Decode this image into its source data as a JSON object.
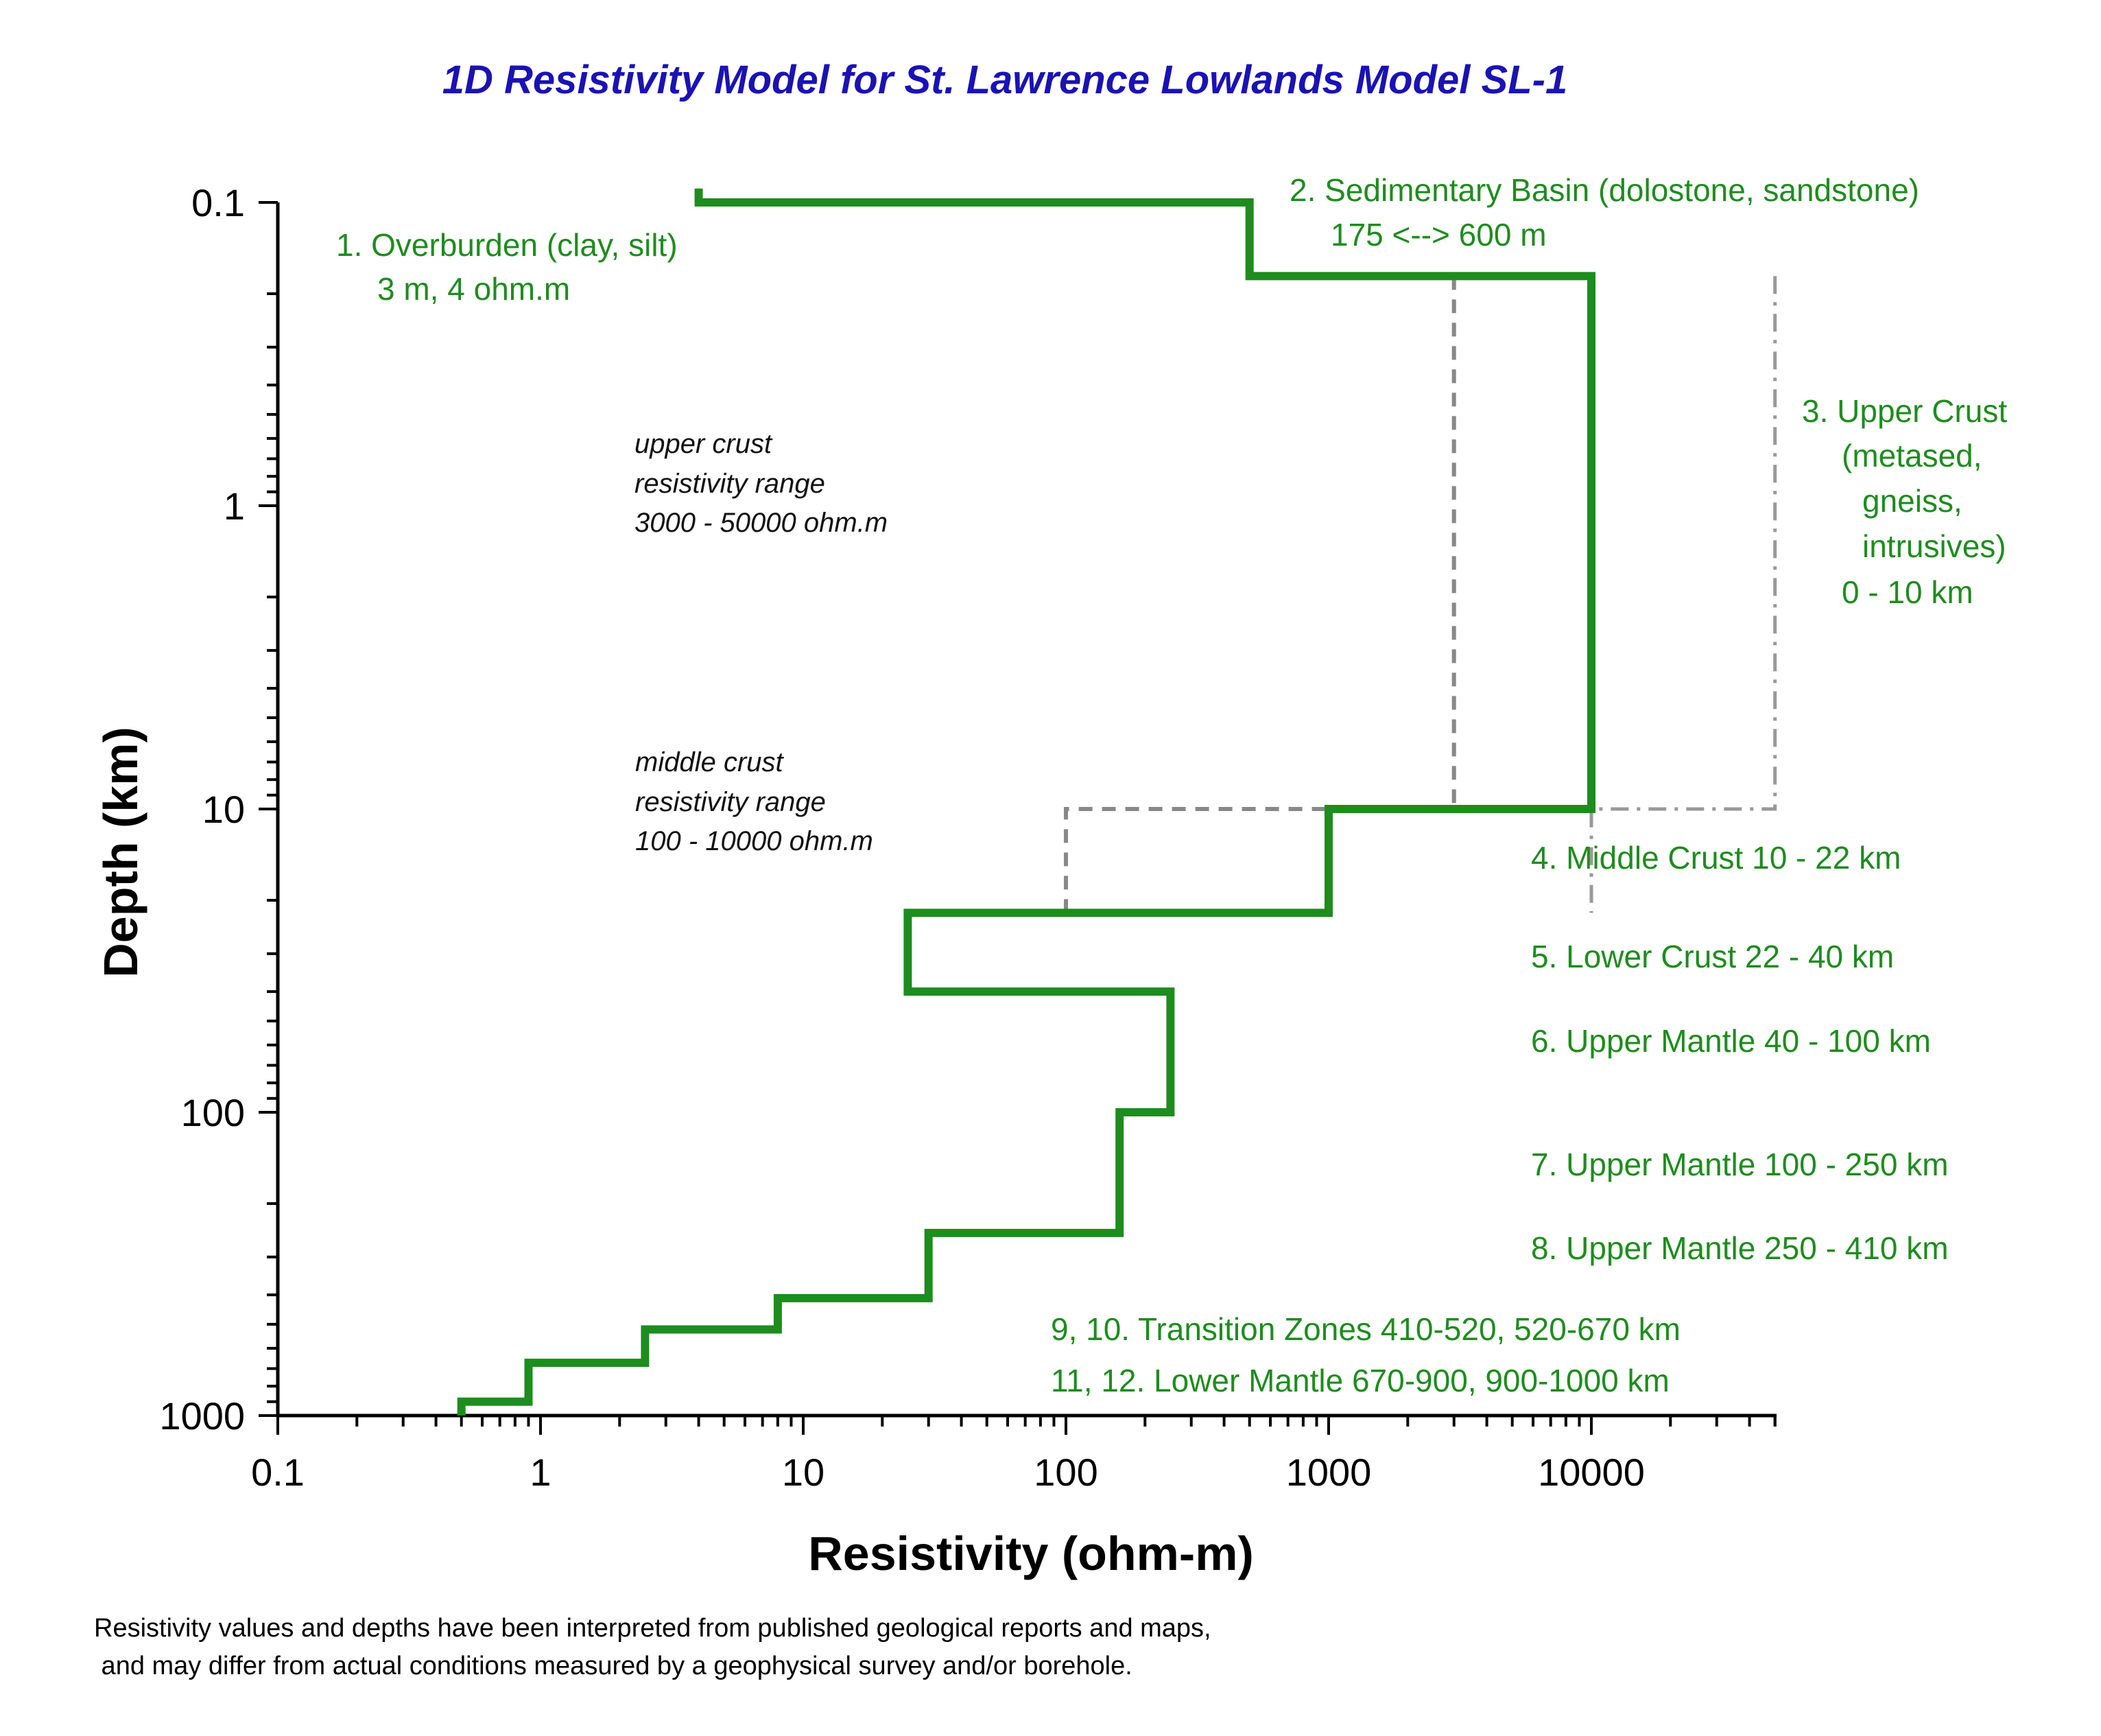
{
  "chart_data": {
    "type": "line",
    "title": "1D Resistivity Model for St. Lawrence Lowlands  Model SL-1",
    "xlabel": "Resistivity (ohm-m)",
    "ylabel": "Depth (km)",
    "x_scale": "log",
    "y_scale": "log",
    "y_inverted": true,
    "xlim": [
      0.1,
      50000
    ],
    "ylim": [
      0.1,
      1000
    ],
    "x_ticks": [
      "0.1",
      "1",
      "10",
      "100",
      "1000",
      "10000"
    ],
    "y_ticks": [
      "0.1",
      "1",
      "10",
      "100",
      "1000"
    ],
    "series": [
      {
        "role": "model",
        "color": "#1e8c1e",
        "style": "solid",
        "x": [
          4,
          4,
          500,
          500,
          10000,
          10000,
          1000,
          1000,
          25,
          25,
          250,
          250,
          160,
          160,
          30,
          30,
          8,
          8,
          2.5,
          2.5,
          0.9,
          0.9,
          0.5,
          0.5
        ],
        "y": [
          0.09,
          0.1,
          0.1,
          0.175,
          0.175,
          10,
          10,
          22,
          22,
          40,
          40,
          100,
          100,
          250,
          250,
          410,
          410,
          520,
          520,
          670,
          670,
          900,
          900,
          1000
        ]
      },
      {
        "role": "upper-crust-min",
        "color": "#888888",
        "style": "dashed",
        "x": [
          3000,
          3000
        ],
        "y": [
          0.175,
          10
        ]
      },
      {
        "role": "upper-crust-max",
        "color": "#999999",
        "style": "dash-dot",
        "x": [
          50000,
          50000,
          10000,
          10000
        ],
        "y": [
          0.175,
          10,
          10,
          22
        ]
      },
      {
        "role": "middle-crust-range",
        "color": "#888888",
        "style": "dashed",
        "x": [
          100,
          100,
          10000
        ],
        "y": [
          22,
          10,
          10
        ]
      }
    ],
    "annotations": {
      "overburden": [
        "1. Overburden (clay, silt)",
        "3 m, 4 ohm.m"
      ],
      "sedimentary": [
        "2. Sedimentary Basin (dolostone, sandstone)",
        "175 <--> 600 m"
      ],
      "upper_crust": [
        "3. Upper Crust",
        "(metased,",
        "gneiss,",
        "intrusives)",
        "0 - 10 km"
      ],
      "upper_range": [
        "upper crust",
        "resistivity range",
        "3000 - 50000 ohm.m"
      ],
      "middle_range": [
        "middle crust",
        "resistivity range",
        "100 - 10000 ohm.m"
      ],
      "layer4": "4. Middle Crust 10 - 22 km",
      "layer5": "5. Lower Crust 22 - 40 km",
      "layer6": "6. Upper Mantle 40 - 100 km",
      "layer7": "7. Upper Mantle 100 - 250 km",
      "layer8": "8. Upper Mantle  250 - 410 km",
      "layer9_10": "9, 10. Transition Zones 410-520, 520-670 km",
      "layer11_12": "11, 12. Lower Mantle 670-900, 900-1000 km"
    },
    "footnote": [
      "Resistivity values and depths have been interpreted from published geological reports and maps,",
      " and may differ from actual conditions measured by a geophysical survey and/or borehole."
    ]
  }
}
